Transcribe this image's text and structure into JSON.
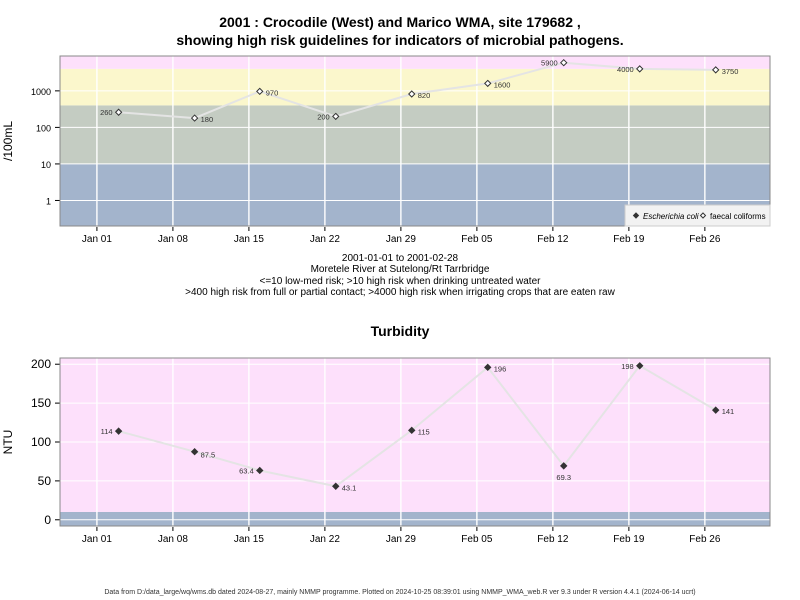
{
  "header": {
    "title_line1": "2001 : Crocodile (West) and Marico WMA, site 179682 ,",
    "title_line2": "showing high risk guidelines for indicators of microbial pathogens."
  },
  "subtitle": {
    "line1": "2001-01-01 to 2001-02-28",
    "line2": "Moretele River at Sutelong/Rt Tarrbridge",
    "line3": "<=10 low-med risk; >10 high risk when drinking untreated water",
    "line4": ">400 high risk from full or partial contact; >4000 high risk when irrigating crops that are eaten raw"
  },
  "footer": "Data from D:/data_large/wq/wms.db dated 2024-08-27, mainly NMMP programme. Plotted on 2024-10-25 08:39:01 using NMMP_WMA_web.R ver 9.3 under R version 4.4.1 (2024-06-14 ucrt)",
  "colors": {
    "band_blue": "#a3b4cc",
    "band_green": "#c4ccc2",
    "band_yellow": "#fbf7cc",
    "band_pink": "#fde0fb",
    "series_line": "#e4e4e4",
    "grid": "#ffffff"
  },
  "chart_data": [
    {
      "type": "scatter",
      "title": "",
      "ylabel": "/100mL",
      "yscale": "log",
      "ylim": [
        0.2,
        9000
      ],
      "x_ticks": [
        "Jan 01",
        "Jan 08",
        "Jan 15",
        "Jan 22",
        "Jan 29",
        "Feb 05",
        "Feb 12",
        "Feb 19",
        "Feb 26"
      ],
      "y_ticks": [
        1,
        10,
        100,
        1000
      ],
      "y_tick_labels": [
        "1",
        "10",
        "100",
        "1000"
      ],
      "risk_bands": [
        {
          "from": 0.2,
          "to": 10,
          "color": "#a3b4cc"
        },
        {
          "from": 10,
          "to": 400,
          "color": "#c4ccc2"
        },
        {
          "from": 400,
          "to": 4000,
          "color": "#fbf7cc"
        },
        {
          "from": 4000,
          "to": 9000,
          "color": "#fde0fb"
        }
      ],
      "legend": {
        "position": "bottom-right",
        "entries": [
          "Escherichia coli",
          "faecal coliforms"
        ]
      },
      "series": [
        {
          "name": "faecal coliforms",
          "marker": "open-diamond",
          "points": [
            {
              "date": "2001-01-03",
              "value": 260,
              "label": "260"
            },
            {
              "date": "2001-01-10",
              "value": 180,
              "label": "180"
            },
            {
              "date": "2001-01-16",
              "value": 970,
              "label": "970"
            },
            {
              "date": "2001-01-23",
              "value": 200,
              "label": "200"
            },
            {
              "date": "2001-01-30",
              "value": 820,
              "label": "820"
            },
            {
              "date": "2001-02-06",
              "value": 1600,
              "label": "1600"
            },
            {
              "date": "2001-02-13",
              "value": 5900,
              "label": "5900"
            },
            {
              "date": "2001-02-20",
              "value": 4000,
              "label": "4000"
            },
            {
              "date": "2001-02-27",
              "value": 3750,
              "label": "3750"
            }
          ]
        }
      ]
    },
    {
      "type": "scatter",
      "title": "Turbidity",
      "ylabel": "NTU",
      "ylim": [
        -8,
        208
      ],
      "x_ticks": [
        "Jan 01",
        "Jan 08",
        "Jan 15",
        "Jan 22",
        "Jan 29",
        "Feb 05",
        "Feb 12",
        "Feb 19",
        "Feb 26"
      ],
      "y_ticks": [
        0,
        50,
        100,
        150,
        200
      ],
      "y_tick_labels": [
        "0",
        "50",
        "100",
        "150",
        "200"
      ],
      "risk_bands": [
        {
          "from": -8,
          "to": 10,
          "color": "#a3b4cc"
        },
        {
          "from": 10,
          "to": 208,
          "color": "#fde0fb"
        }
      ],
      "series": [
        {
          "name": "",
          "marker": "filled-diamond",
          "points": [
            {
              "date": "2001-01-03",
              "value": 114,
              "label": "114"
            },
            {
              "date": "2001-01-10",
              "value": 87.5,
              "label": "87.5"
            },
            {
              "date": "2001-01-16",
              "value": 63.4,
              "label": "63.4"
            },
            {
              "date": "2001-01-23",
              "value": 43.1,
              "label": "43.1"
            },
            {
              "date": "2001-01-30",
              "value": 115,
              "label": "115"
            },
            {
              "date": "2001-02-06",
              "value": 196,
              "label": "196"
            },
            {
              "date": "2001-02-13",
              "value": 69.3,
              "label": "69.3"
            },
            {
              "date": "2001-02-20",
              "value": 198,
              "label": "198"
            },
            {
              "date": "2001-02-27",
              "value": 141,
              "label": "141"
            }
          ]
        }
      ]
    }
  ]
}
